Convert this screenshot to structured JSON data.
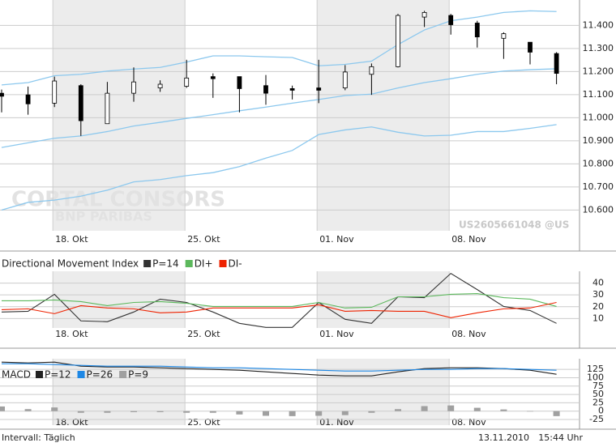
{
  "chart_data": [
    {
      "type": "candlestick",
      "categories": [
        null,
        null,
        "18. Okt",
        null,
        null,
        null,
        null,
        "25. Okt",
        null,
        null,
        null,
        null,
        "01. Nov",
        null,
        null,
        null,
        null,
        "08. Nov",
        null,
        null,
        null,
        null
      ],
      "open": [
        11.106,
        11.099,
        11.063,
        11.139,
        10.974,
        11.106,
        11.129,
        11.136,
        11.178,
        11.178,
        11.139,
        11.126,
        11.129,
        11.129,
        11.188,
        11.221,
        11.436,
        11.443,
        11.41,
        11.344,
        11.327,
        11.278
      ],
      "high": [
        11.122,
        11.135,
        11.178,
        11.145,
        11.155,
        11.218,
        11.162,
        11.251,
        11.192,
        11.178,
        11.185,
        11.139,
        11.251,
        11.228,
        11.235,
        11.45,
        11.463,
        11.45,
        11.42,
        11.37,
        11.327,
        11.284
      ],
      "low": [
        11.023,
        11.013,
        11.046,
        10.921,
        10.974,
        11.069,
        11.112,
        11.129,
        11.086,
        11.023,
        11.056,
        11.079,
        11.063,
        11.119,
        11.099,
        11.218,
        11.393,
        11.36,
        11.304,
        11.255,
        11.231,
        11.145
      ],
      "close": [
        11.093,
        11.06,
        11.159,
        10.987,
        11.106,
        11.155,
        11.145,
        11.172,
        11.169,
        11.126,
        11.106,
        11.119,
        11.119,
        11.198,
        11.221,
        11.443,
        11.456,
        11.403,
        11.35,
        11.364,
        11.284,
        11.192
      ],
      "upper": [
        11.142,
        11.152,
        11.182,
        11.188,
        11.202,
        11.211,
        11.218,
        11.241,
        11.268,
        11.268,
        11.264,
        11.261,
        11.225,
        11.231,
        11.245,
        11.317,
        11.38,
        11.42,
        11.436,
        11.456,
        11.463,
        11.46
      ],
      "middle": [
        10.871,
        10.891,
        10.911,
        10.921,
        10.94,
        10.964,
        10.98,
        10.997,
        11.013,
        11.03,
        11.046,
        11.063,
        11.079,
        11.096,
        11.102,
        11.129,
        11.152,
        11.169,
        11.188,
        11.202,
        11.208,
        11.212
      ],
      "lower": [
        10.6,
        10.633,
        10.643,
        10.66,
        10.686,
        10.722,
        10.732,
        10.749,
        10.762,
        10.788,
        10.825,
        10.858,
        10.927,
        10.947,
        10.96,
        10.937,
        10.921,
        10.924,
        10.94,
        10.94,
        10.954,
        10.97
      ],
      "up_color": "#ffffff",
      "down_color": "#000000",
      "band_color": "#8cc8ee",
      "ylim": [
        10.51,
        11.51
      ],
      "yticks": [
        {
          "value": 10.6,
          "label": "10.600"
        },
        {
          "value": 10.7,
          "label": "10.700"
        },
        {
          "value": 10.8,
          "label": "10.800"
        },
        {
          "value": 10.9,
          "label": "10.900"
        },
        {
          "value": 11.0,
          "label": "11.000"
        },
        {
          "value": 11.1,
          "label": "11.100"
        },
        {
          "value": 11.2,
          "label": "11.200"
        },
        {
          "value": 11.3,
          "label": "11.300"
        },
        {
          "value": 11.4,
          "label": "11.400"
        }
      ],
      "grid": true
    },
    {
      "type": "line",
      "title": "Directional Movement Index",
      "categories": [
        null,
        null,
        "18. Okt",
        null,
        null,
        null,
        null,
        "25. Okt",
        null,
        null,
        null,
        null,
        "01. Nov",
        null,
        null,
        null,
        null,
        "08. Nov",
        null,
        null,
        null,
        null
      ],
      "series": [
        {
          "name": "P=14",
          "color": "#333333",
          "values": [
            15.5,
            16.1,
            30.5,
            8.0,
            7.3,
            15.5,
            26.4,
            23.6,
            15.5,
            5.9,
            2.5,
            2.5,
            23.6,
            9.3,
            5.9,
            28.4,
            27.7,
            48.2,
            34.5,
            20.2,
            16.8,
            5.9
          ]
        },
        {
          "name": "DI+",
          "color": "#5cb85c",
          "values": [
            25.0,
            25.0,
            25.7,
            24.3,
            20.9,
            23.6,
            24.3,
            22.9,
            20.2,
            20.2,
            20.2,
            20.2,
            23.6,
            18.9,
            19.5,
            28.4,
            28.4,
            30.5,
            31.1,
            27.7,
            26.4,
            20.2
          ]
        },
        {
          "name": "DI-",
          "color": "#ee2200",
          "values": [
            17.5,
            18.2,
            14.1,
            20.9,
            18.9,
            18.2,
            14.8,
            15.5,
            18.9,
            18.9,
            18.9,
            18.9,
            21.6,
            16.1,
            16.8,
            16.1,
            16.1,
            10.7,
            14.8,
            18.2,
            18.9,
            23.6
          ]
        }
      ],
      "ylim": [
        2,
        50
      ],
      "yticks": [
        10,
        20,
        30,
        40
      ],
      "grid": true
    },
    {
      "type": "line",
      "title": "MACD",
      "categories": [
        null,
        null,
        "18. Okt",
        null,
        null,
        null,
        null,
        "25. Okt",
        null,
        null,
        null,
        null,
        "01. Nov",
        null,
        null,
        null,
        null,
        "08. Nov",
        null,
        null,
        null,
        null
      ],
      "series": [
        {
          "name": "P=12",
          "color": "#222222",
          "style": "line",
          "values": [
            146.8,
            144.4,
            146.8,
            134.7,
            132.3,
            132.3,
            129.8,
            127.4,
            125,
            122.6,
            117.7,
            112.9,
            108.1,
            105.6,
            105.6,
            117.7,
            127.4,
            129.8,
            129.8,
            127.4,
            122.6,
            110.5
          ]
        },
        {
          "name": "P=26",
          "color": "#1e88e5",
          "style": "line",
          "values": [
            142,
            142,
            139.5,
            137.1,
            134.7,
            134.7,
            134.7,
            132.3,
            129.8,
            129.8,
            127.4,
            125,
            122.6,
            120.2,
            120.2,
            122.6,
            125,
            125,
            127.4,
            127.4,
            125,
            122.6
          ]
        },
        {
          "name": "P=9",
          "color": "#a0a0a0",
          "style": "bar",
          "values": [
            14,
            6,
            11,
            -5,
            -5,
            -3,
            -3,
            -5,
            -5,
            -10,
            -14,
            -15,
            -14,
            -12,
            -5,
            6,
            15,
            17,
            10,
            5,
            0,
            -15
          ]
        }
      ],
      "ylim": [
        -42,
        157
      ],
      "yticks": [
        -25,
        0,
        25,
        50,
        75,
        100,
        125
      ],
      "grid": true
    }
  ],
  "watermark": {
    "brand": "CORTAL CONSORS",
    "sub": "BNP PARIBAS",
    "id": "US2605661048 @US"
  },
  "footer": {
    "interval": "Intervall: Täglich",
    "date": "13.11.2010",
    "time": "15:44 Uhr"
  }
}
